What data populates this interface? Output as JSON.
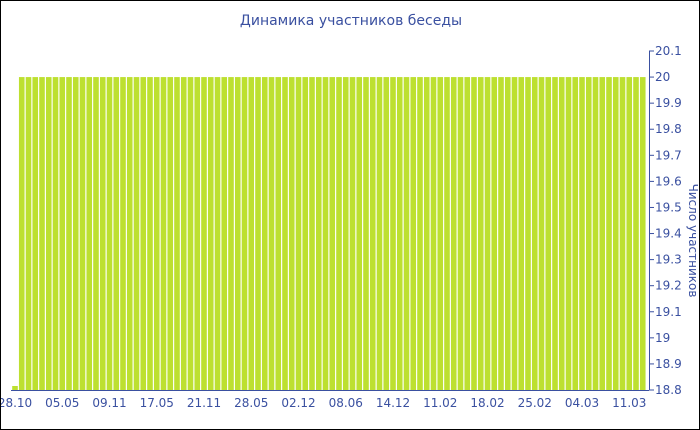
{
  "chart_data": {
    "type": "bar",
    "title": "Динамика участников беседы",
    "xlabel": "",
    "ylabel": "Число участников",
    "ylim": [
      18.8,
      20.1
    ],
    "yticks": [
      "18.8",
      "18.9",
      "19",
      "19.1",
      "19.2",
      "19.3",
      "19.4",
      "19.5",
      "19.6",
      "19.7",
      "19.8",
      "19.9",
      "20",
      "20.1"
    ],
    "y_axis_side": "right",
    "grid": false,
    "bar_color": "#bde030",
    "text_color": "#3a50a0",
    "x_tick_labels": [
      "28.10",
      "05.05",
      "09.11",
      "17.05",
      "21.11",
      "28.05",
      "02.12",
      "08.06",
      "14.12",
      "11.02",
      "18.02",
      "25.02",
      "04.03",
      "11.03"
    ],
    "x_tick_every_n_bars": 7,
    "first_value": 18.81,
    "other_value": 20,
    "bar_count": 94
  }
}
